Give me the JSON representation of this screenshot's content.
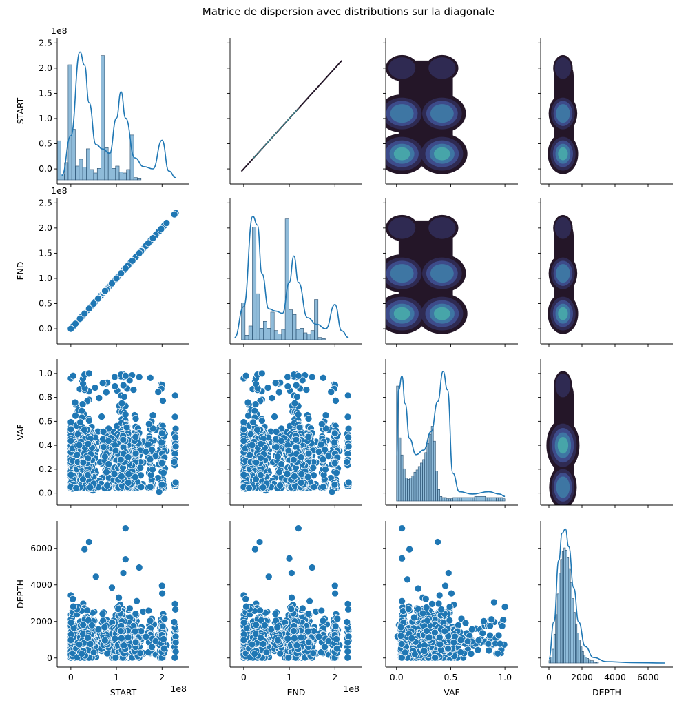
{
  "chart_data": {
    "type": "scatter",
    "title": "Matrice de dispersion avec distributions sur la diagonale",
    "variables": [
      "START",
      "END",
      "VAF",
      "DEPTH"
    ],
    "axes": {
      "START": {
        "range": [
          -30000000,
          260000000
        ],
        "ticks": [
          0,
          50000000,
          100000000,
          150000000,
          200000000,
          250000000
        ],
        "tick_labels_y": [
          "0.0",
          "0.5",
          "1.0",
          "1.5",
          "2.0",
          "2.5"
        ],
        "tick_labels_x": [
          "0",
          "1",
          "2"
        ],
        "ticks_x": [
          0,
          100000000,
          200000000
        ],
        "offset_label": "1e8"
      },
      "END": {
        "range": [
          -30000000,
          260000000
        ],
        "ticks": [
          0,
          50000000,
          100000000,
          150000000,
          200000000,
          250000000
        ],
        "tick_labels_y": [
          "0.0",
          "0.5",
          "1.0",
          "1.5",
          "2.0",
          "2.5"
        ],
        "tick_labels_x": [
          "0",
          "1",
          "2"
        ],
        "ticks_x": [
          0,
          100000000,
          200000000
        ],
        "offset_label": "1e8"
      },
      "VAF": {
        "range": [
          -0.1,
          1.12
        ],
        "ticks": [
          0.0,
          0.2,
          0.4,
          0.6,
          0.8,
          1.0
        ],
        "tick_labels_y": [
          "0.0",
          "0.2",
          "0.4",
          "0.6",
          "0.8",
          "1.0"
        ],
        "ticks_x": [
          0.0,
          0.5,
          1.0
        ],
        "tick_labels_x": [
          "0.0",
          "0.5",
          "1.0"
        ]
      },
      "DEPTH": {
        "range": [
          -500,
          7500
        ],
        "ticks": [
          0,
          2000,
          4000,
          6000
        ],
        "tick_labels_y": [
          "0",
          "2000",
          "4000",
          "6000"
        ],
        "ticks_x": [
          0,
          2000,
          4000,
          6000
        ],
        "tick_labels_x": [
          "0",
          "2000",
          "4000",
          "6000"
        ]
      }
    },
    "histograms": {
      "START": {
        "bin_edges_start": -30000000,
        "bin_width": 8000000,
        "heights": [
          0.34,
          0.05,
          0.15,
          1.0,
          0.44,
          0.12,
          0.18,
          0.11,
          0.27,
          0.09,
          0.06,
          0.1,
          1.08,
          0.28,
          0.24,
          0.1,
          0.12,
          0.07,
          0.06,
          0.09,
          0.39,
          0.02,
          0.01
        ]
      },
      "END": {
        "bin_edges_start": -5000000,
        "bin_width": 8000000,
        "heights": [
          0.32,
          0.04,
          0.12,
          0.98,
          0.4,
          0.1,
          0.16,
          0.1,
          0.24,
          0.08,
          0.05,
          0.09,
          1.05,
          0.26,
          0.22,
          0.09,
          0.1,
          0.06,
          0.05,
          0.08,
          0.35,
          0.02,
          0.01
        ]
      },
      "VAF": {
        "bin_edges_start": 0.0,
        "bin_width": 0.02,
        "heights": [
          1.0,
          0.55,
          0.4,
          0.28,
          0.2,
          0.19,
          0.2,
          0.22,
          0.25,
          0.27,
          0.3,
          0.33,
          0.36,
          0.42,
          0.5,
          0.58,
          0.65,
          0.52,
          0.26,
          0.1,
          0.04,
          0.03,
          0.03,
          0.02,
          0.02,
          0.02,
          0.03,
          0.03,
          0.03,
          0.03,
          0.03,
          0.03,
          0.03,
          0.03,
          0.03,
          0.03,
          0.04,
          0.04,
          0.04,
          0.04,
          0.04,
          0.03,
          0.03,
          0.03,
          0.03,
          0.03,
          0.03,
          0.03,
          0.03,
          0.02
        ]
      },
      "DEPTH": {
        "bin_edges_start": 0,
        "bin_width": 100,
        "heights": [
          0.02,
          0.05,
          0.12,
          0.25,
          0.42,
          0.6,
          0.78,
          0.9,
          0.97,
          1.0,
          0.98,
          0.92,
          0.82,
          0.7,
          0.56,
          0.44,
          0.34,
          0.26,
          0.2,
          0.14,
          0.1,
          0.07,
          0.05,
          0.04,
          0.03,
          0.02,
          0.02,
          0.01,
          0.01,
          0.01
        ]
      }
    },
    "kde_curves": {
      "START": {
        "x": [
          -20000000,
          0,
          20000000,
          30000000,
          40000000,
          55000000,
          70000000,
          85000000,
          100000000,
          110000000,
          120000000,
          140000000,
          160000000,
          180000000,
          200000000,
          215000000,
          230000000
        ],
        "y": [
          0.02,
          0.2,
          0.58,
          0.52,
          0.35,
          0.16,
          0.14,
          0.12,
          0.28,
          0.4,
          0.28,
          0.1,
          0.06,
          0.05,
          0.18,
          0.04,
          0.01
        ]
      },
      "END": {
        "x": [
          -20000000,
          0,
          20000000,
          30000000,
          40000000,
          55000000,
          70000000,
          85000000,
          100000000,
          110000000,
          120000000,
          140000000,
          160000000,
          180000000,
          200000000,
          215000000,
          230000000
        ],
        "y": [
          0.01,
          0.15,
          0.56,
          0.52,
          0.3,
          0.14,
          0.13,
          0.12,
          0.26,
          0.38,
          0.26,
          0.1,
          0.07,
          0.05,
          0.16,
          0.04,
          0.01
        ]
      },
      "VAF": {
        "x": [
          0.0,
          0.02,
          0.05,
          0.08,
          0.12,
          0.18,
          0.25,
          0.32,
          0.38,
          0.43,
          0.47,
          0.52,
          0.58,
          0.7,
          0.85,
          0.95,
          1.0
        ],
        "y": [
          0.2,
          0.48,
          0.54,
          0.42,
          0.27,
          0.2,
          0.22,
          0.3,
          0.43,
          0.56,
          0.48,
          0.12,
          0.04,
          0.03,
          0.04,
          0.03,
          0.02
        ]
      },
      "DEPTH": {
        "x": [
          0,
          300,
          600,
          800,
          1000,
          1200,
          1500,
          1800,
          2200,
          2700,
          3500,
          5000,
          7000
        ],
        "y": [
          0.03,
          0.3,
          0.75,
          0.95,
          0.98,
          0.85,
          0.55,
          0.3,
          0.12,
          0.04,
          0.01,
          0.003,
          0.0
        ]
      }
    },
    "scatter_pairs": [
      {
        "x_var": "START",
        "y_var": "END",
        "points": [
          [
            0,
            0
          ],
          [
            10000000,
            10000000
          ],
          [
            20000000,
            20000000
          ],
          [
            30000000,
            30000000
          ],
          [
            40000000,
            40000000
          ],
          [
            50000000,
            50000000
          ],
          [
            60000000,
            60000000
          ],
          [
            75000000,
            75000000
          ],
          [
            90000000,
            90000000
          ],
          [
            100000000,
            100000000
          ],
          [
            110000000,
            110000000
          ],
          [
            120000000,
            120000000
          ],
          [
            135000000,
            135000000
          ],
          [
            150000000,
            150000000
          ],
          [
            170000000,
            170000000
          ],
          [
            180000000,
            180000000
          ],
          [
            198000000,
            198000000
          ],
          [
            210000000,
            210000000
          ],
          [
            227000000,
            227000000
          ]
        ]
      },
      {
        "x_var": "START",
        "y_var": "VAF",
        "points": [
          [
            5000000,
            0.98
          ],
          [
            30000000,
            0.99
          ],
          [
            40000000,
            1.0
          ],
          [
            70000000,
            0.92
          ],
          [
            110000000,
            0.99
          ],
          [
            120000000,
            0.98
          ],
          [
            150000000,
            0.97
          ],
          [
            180000000,
            0.65
          ],
          [
            200000000,
            0.5
          ],
          [
            230000000,
            0.39
          ],
          [
            230000000,
            0.09
          ]
        ]
      },
      {
        "x_var": "START",
        "y_var": "DEPTH",
        "points": [
          [
            30000000,
            5950
          ],
          [
            40000000,
            6350
          ],
          [
            120000000,
            7100
          ],
          [
            55000000,
            4450
          ],
          [
            90000000,
            3850
          ],
          [
            115000000,
            4650
          ],
          [
            150000000,
            4950
          ],
          [
            200000000,
            3950
          ],
          [
            230000000,
            850
          ],
          [
            230000000,
            350
          ],
          [
            120000000,
            5400
          ]
        ]
      },
      {
        "x_var": "END",
        "y_var": "VAF",
        "points": [
          [
            5000000,
            0.98
          ],
          [
            30000000,
            0.99
          ],
          [
            40000000,
            1.0
          ],
          [
            70000000,
            0.92
          ],
          [
            110000000,
            0.99
          ],
          [
            120000000,
            0.98
          ],
          [
            150000000,
            0.97
          ],
          [
            180000000,
            0.65
          ],
          [
            200000000,
            0.5
          ],
          [
            230000000,
            0.39
          ],
          [
            230000000,
            0.09
          ]
        ]
      },
      {
        "x_var": "END",
        "y_var": "DEPTH",
        "points": [
          [
            25000000,
            5950
          ],
          [
            35000000,
            6350
          ],
          [
            120000000,
            7100
          ],
          [
            55000000,
            4450
          ],
          [
            100000000,
            5450
          ],
          [
            105000000,
            4650
          ],
          [
            150000000,
            4950
          ],
          [
            200000000,
            3950
          ],
          [
            228000000,
            850
          ],
          [
            228000000,
            350
          ]
        ]
      },
      {
        "x_var": "VAF",
        "y_var": "DEPTH",
        "points": [
          [
            0.05,
            7100
          ],
          [
            0.12,
            5950
          ],
          [
            0.38,
            6350
          ],
          [
            0.05,
            5450
          ],
          [
            0.48,
            4650
          ],
          [
            0.45,
            3950
          ],
          [
            0.9,
            3050
          ],
          [
            1.0,
            2800
          ],
          [
            0.2,
            3800
          ],
          [
            0.1,
            4300
          ]
        ]
      }
    ]
  }
}
